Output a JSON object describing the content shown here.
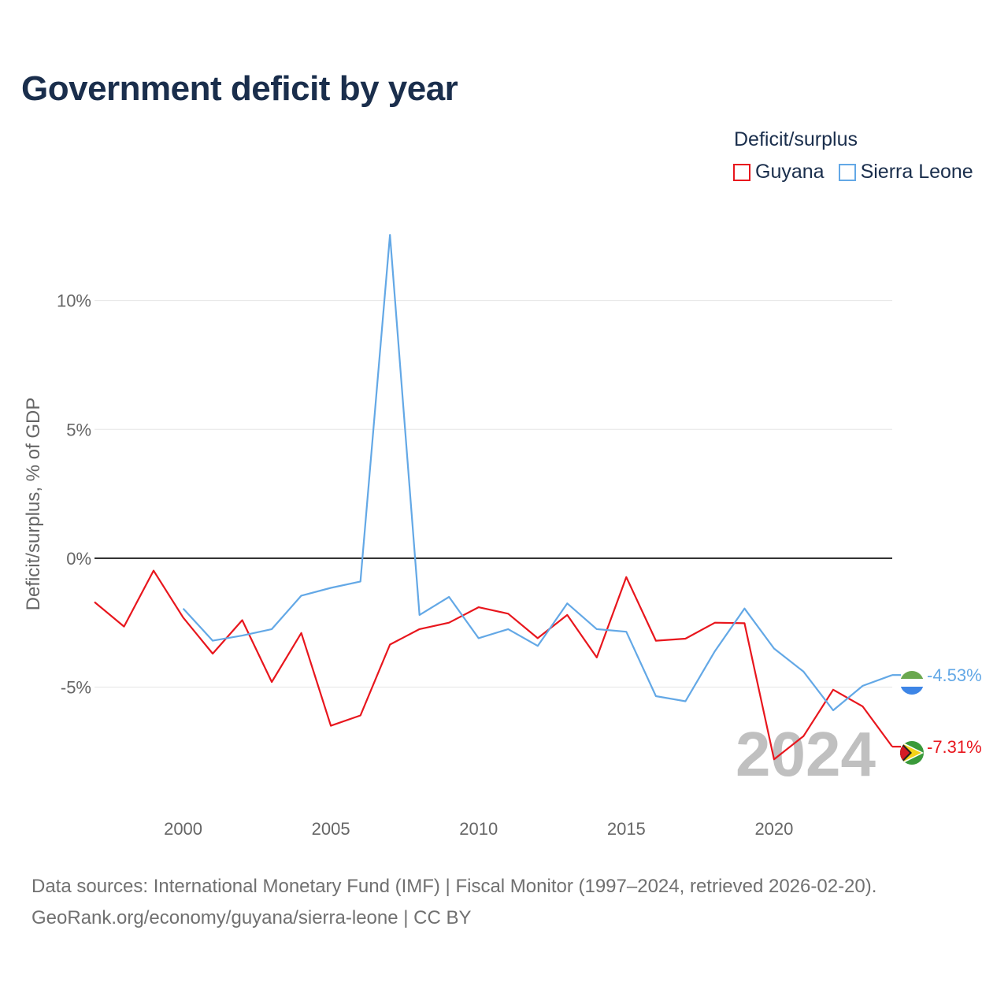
{
  "title": "Government deficit by year",
  "legend": {
    "title": "Deficit/surplus",
    "items": [
      {
        "label": "Guyana",
        "color": "#e8161d"
      },
      {
        "label": "Sierra Leone",
        "color": "#63a8e6"
      }
    ]
  },
  "chart_data": {
    "type": "line",
    "title": "Government deficit by year",
    "xlabel": "",
    "ylabel": "Deficit/surplus, % of GDP",
    "xlim": [
      1997,
      2024
    ],
    "ylim": [
      -9.2,
      12.8
    ],
    "x_ticks": [
      2000,
      2005,
      2010,
      2015,
      2020
    ],
    "y_ticks": [
      {
        "value": 10,
        "label": "10%"
      },
      {
        "value": 5,
        "label": "5%"
      },
      {
        "value": 0,
        "label": "0%"
      },
      {
        "value": -5,
        "label": "-5%"
      }
    ],
    "grid": true,
    "legend_position": "top-right",
    "watermark_year": "2024",
    "series": [
      {
        "name": "Guyana",
        "color": "#e8161d",
        "x": [
          1997,
          1998,
          1999,
          2000,
          2001,
          2002,
          2003,
          2004,
          2005,
          2006,
          2007,
          2008,
          2009,
          2010,
          2011,
          2012,
          2013,
          2014,
          2015,
          2016,
          2017,
          2018,
          2019,
          2020,
          2021,
          2022,
          2023,
          2024
        ],
        "values": [
          -1.7,
          -2.65,
          -0.48,
          -2.3,
          -3.7,
          -2.4,
          -4.8,
          -2.9,
          -6.5,
          -6.1,
          -3.35,
          -2.75,
          -2.5,
          -1.9,
          -2.15,
          -3.1,
          -2.2,
          -3.85,
          -0.73,
          -3.2,
          -3.12,
          -2.5,
          -2.52,
          -7.8,
          -6.9,
          -5.1,
          -5.75,
          -7.31
        ],
        "end_label": "-7.31%"
      },
      {
        "name": "Sierra Leone",
        "color": "#63a8e6",
        "x": [
          2000,
          2001,
          2002,
          2003,
          2004,
          2005,
          2006,
          2007,
          2008,
          2009,
          2010,
          2011,
          2012,
          2013,
          2014,
          2015,
          2016,
          2017,
          2018,
          2019,
          2020,
          2021,
          2022,
          2023,
          2024
        ],
        "values": [
          -1.95,
          -3.2,
          -3.0,
          -2.75,
          -1.45,
          -1.15,
          -0.9,
          12.55,
          -2.2,
          -1.5,
          -3.1,
          -2.75,
          -3.4,
          -1.75,
          -2.75,
          -2.85,
          -5.35,
          -5.55,
          -3.6,
          -1.95,
          -3.5,
          -4.4,
          -5.9,
          -4.95,
          -4.53
        ],
        "end_label": "-4.53%"
      }
    ]
  },
  "footer": {
    "line1": "Data sources: International Monetary Fund (IMF) | Fiscal Monitor (1997–2024, retrieved 2026-02-20).",
    "line2": "GeoRank.org/economy/guyana/sierra-leone | CC BY"
  }
}
